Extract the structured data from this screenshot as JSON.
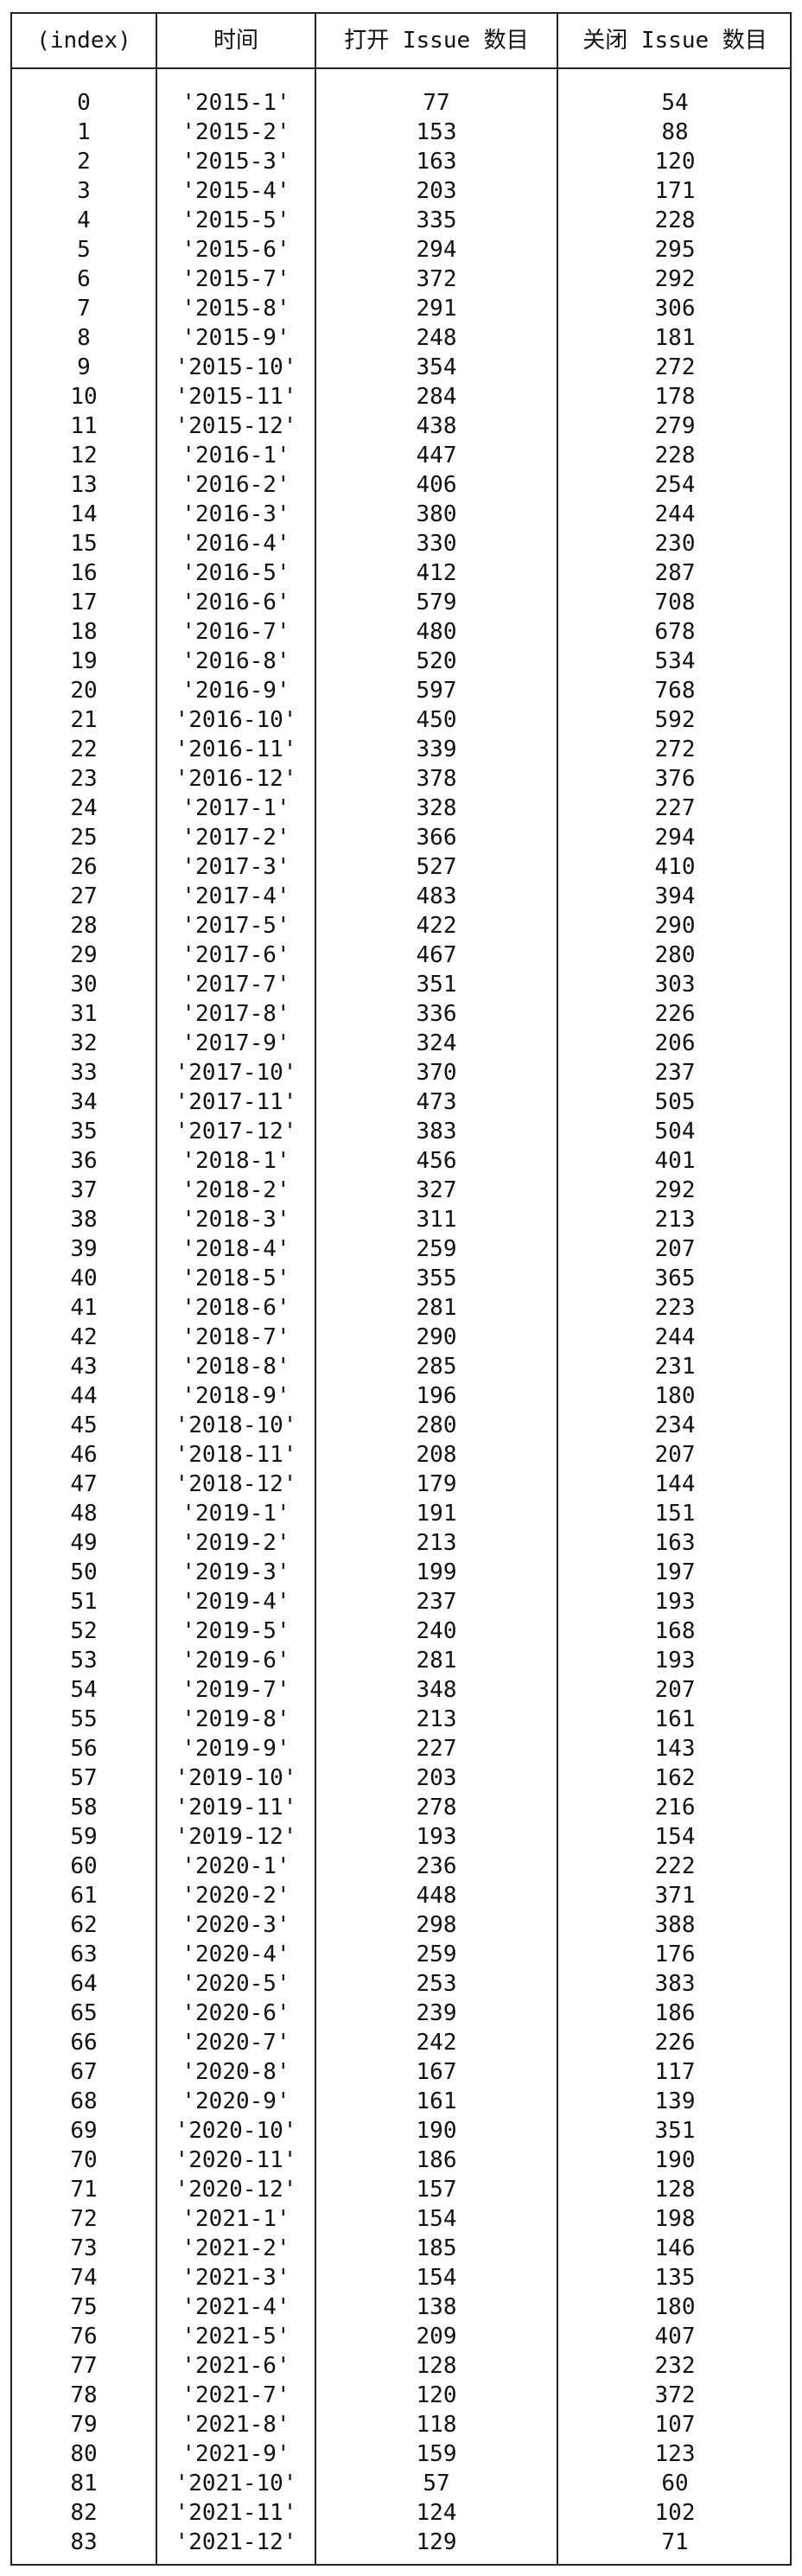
{
  "table": {
    "columns": [
      "(index)",
      "时间",
      "打开 Issue 数目",
      "关闭 Issue 数目"
    ],
    "rows": [
      [
        "0",
        "'2015-1'",
        "77",
        "54"
      ],
      [
        "1",
        "'2015-2'",
        "153",
        "88"
      ],
      [
        "2",
        "'2015-3'",
        "163",
        "120"
      ],
      [
        "3",
        "'2015-4'",
        "203",
        "171"
      ],
      [
        "4",
        "'2015-5'",
        "335",
        "228"
      ],
      [
        "5",
        "'2015-6'",
        "294",
        "295"
      ],
      [
        "6",
        "'2015-7'",
        "372",
        "292"
      ],
      [
        "7",
        "'2015-8'",
        "291",
        "306"
      ],
      [
        "8",
        "'2015-9'",
        "248",
        "181"
      ],
      [
        "9",
        "'2015-10'",
        "354",
        "272"
      ],
      [
        "10",
        "'2015-11'",
        "284",
        "178"
      ],
      [
        "11",
        "'2015-12'",
        "438",
        "279"
      ],
      [
        "12",
        "'2016-1'",
        "447",
        "228"
      ],
      [
        "13",
        "'2016-2'",
        "406",
        "254"
      ],
      [
        "14",
        "'2016-3'",
        "380",
        "244"
      ],
      [
        "15",
        "'2016-4'",
        "330",
        "230"
      ],
      [
        "16",
        "'2016-5'",
        "412",
        "287"
      ],
      [
        "17",
        "'2016-6'",
        "579",
        "708"
      ],
      [
        "18",
        "'2016-7'",
        "480",
        "678"
      ],
      [
        "19",
        "'2016-8'",
        "520",
        "534"
      ],
      [
        "20",
        "'2016-9'",
        "597",
        "768"
      ],
      [
        "21",
        "'2016-10'",
        "450",
        "592"
      ],
      [
        "22",
        "'2016-11'",
        "339",
        "272"
      ],
      [
        "23",
        "'2016-12'",
        "378",
        "376"
      ],
      [
        "24",
        "'2017-1'",
        "328",
        "227"
      ],
      [
        "25",
        "'2017-2'",
        "366",
        "294"
      ],
      [
        "26",
        "'2017-3'",
        "527",
        "410"
      ],
      [
        "27",
        "'2017-4'",
        "483",
        "394"
      ],
      [
        "28",
        "'2017-5'",
        "422",
        "290"
      ],
      [
        "29",
        "'2017-6'",
        "467",
        "280"
      ],
      [
        "30",
        "'2017-7'",
        "351",
        "303"
      ],
      [
        "31",
        "'2017-8'",
        "336",
        "226"
      ],
      [
        "32",
        "'2017-9'",
        "324",
        "206"
      ],
      [
        "33",
        "'2017-10'",
        "370",
        "237"
      ],
      [
        "34",
        "'2017-11'",
        "473",
        "505"
      ],
      [
        "35",
        "'2017-12'",
        "383",
        "504"
      ],
      [
        "36",
        "'2018-1'",
        "456",
        "401"
      ],
      [
        "37",
        "'2018-2'",
        "327",
        "292"
      ],
      [
        "38",
        "'2018-3'",
        "311",
        "213"
      ],
      [
        "39",
        "'2018-4'",
        "259",
        "207"
      ],
      [
        "40",
        "'2018-5'",
        "355",
        "365"
      ],
      [
        "41",
        "'2018-6'",
        "281",
        "223"
      ],
      [
        "42",
        "'2018-7'",
        "290",
        "244"
      ],
      [
        "43",
        "'2018-8'",
        "285",
        "231"
      ],
      [
        "44",
        "'2018-9'",
        "196",
        "180"
      ],
      [
        "45",
        "'2018-10'",
        "280",
        "234"
      ],
      [
        "46",
        "'2018-11'",
        "208",
        "207"
      ],
      [
        "47",
        "'2018-12'",
        "179",
        "144"
      ],
      [
        "48",
        "'2019-1'",
        "191",
        "151"
      ],
      [
        "49",
        "'2019-2'",
        "213",
        "163"
      ],
      [
        "50",
        "'2019-3'",
        "199",
        "197"
      ],
      [
        "51",
        "'2019-4'",
        "237",
        "193"
      ],
      [
        "52",
        "'2019-5'",
        "240",
        "168"
      ],
      [
        "53",
        "'2019-6'",
        "281",
        "193"
      ],
      [
        "54",
        "'2019-7'",
        "348",
        "207"
      ],
      [
        "55",
        "'2019-8'",
        "213",
        "161"
      ],
      [
        "56",
        "'2019-9'",
        "227",
        "143"
      ],
      [
        "57",
        "'2019-10'",
        "203",
        "162"
      ],
      [
        "58",
        "'2019-11'",
        "278",
        "216"
      ],
      [
        "59",
        "'2019-12'",
        "193",
        "154"
      ],
      [
        "60",
        "'2020-1'",
        "236",
        "222"
      ],
      [
        "61",
        "'2020-2'",
        "448",
        "371"
      ],
      [
        "62",
        "'2020-3'",
        "298",
        "388"
      ],
      [
        "63",
        "'2020-4'",
        "259",
        "176"
      ],
      [
        "64",
        "'2020-5'",
        "253",
        "383"
      ],
      [
        "65",
        "'2020-6'",
        "239",
        "186"
      ],
      [
        "66",
        "'2020-7'",
        "242",
        "226"
      ],
      [
        "67",
        "'2020-8'",
        "167",
        "117"
      ],
      [
        "68",
        "'2020-9'",
        "161",
        "139"
      ],
      [
        "69",
        "'2020-10'",
        "190",
        "351"
      ],
      [
        "70",
        "'2020-11'",
        "186",
        "190"
      ],
      [
        "71",
        "'2020-12'",
        "157",
        "128"
      ],
      [
        "72",
        "'2021-1'",
        "154",
        "198"
      ],
      [
        "73",
        "'2021-2'",
        "185",
        "146"
      ],
      [
        "74",
        "'2021-3'",
        "154",
        "135"
      ],
      [
        "75",
        "'2021-4'",
        "138",
        "180"
      ],
      [
        "76",
        "'2021-5'",
        "209",
        "407"
      ],
      [
        "77",
        "'2021-6'",
        "128",
        "232"
      ],
      [
        "78",
        "'2021-7'",
        "120",
        "372"
      ],
      [
        "79",
        "'2021-8'",
        "118",
        "107"
      ],
      [
        "80",
        "'2021-9'",
        "159",
        "123"
      ],
      [
        "81",
        "'2021-10'",
        "57",
        "60"
      ],
      [
        "82",
        "'2021-11'",
        "124",
        "102"
      ],
      [
        "83",
        "'2021-12'",
        "129",
        "71"
      ]
    ]
  }
}
